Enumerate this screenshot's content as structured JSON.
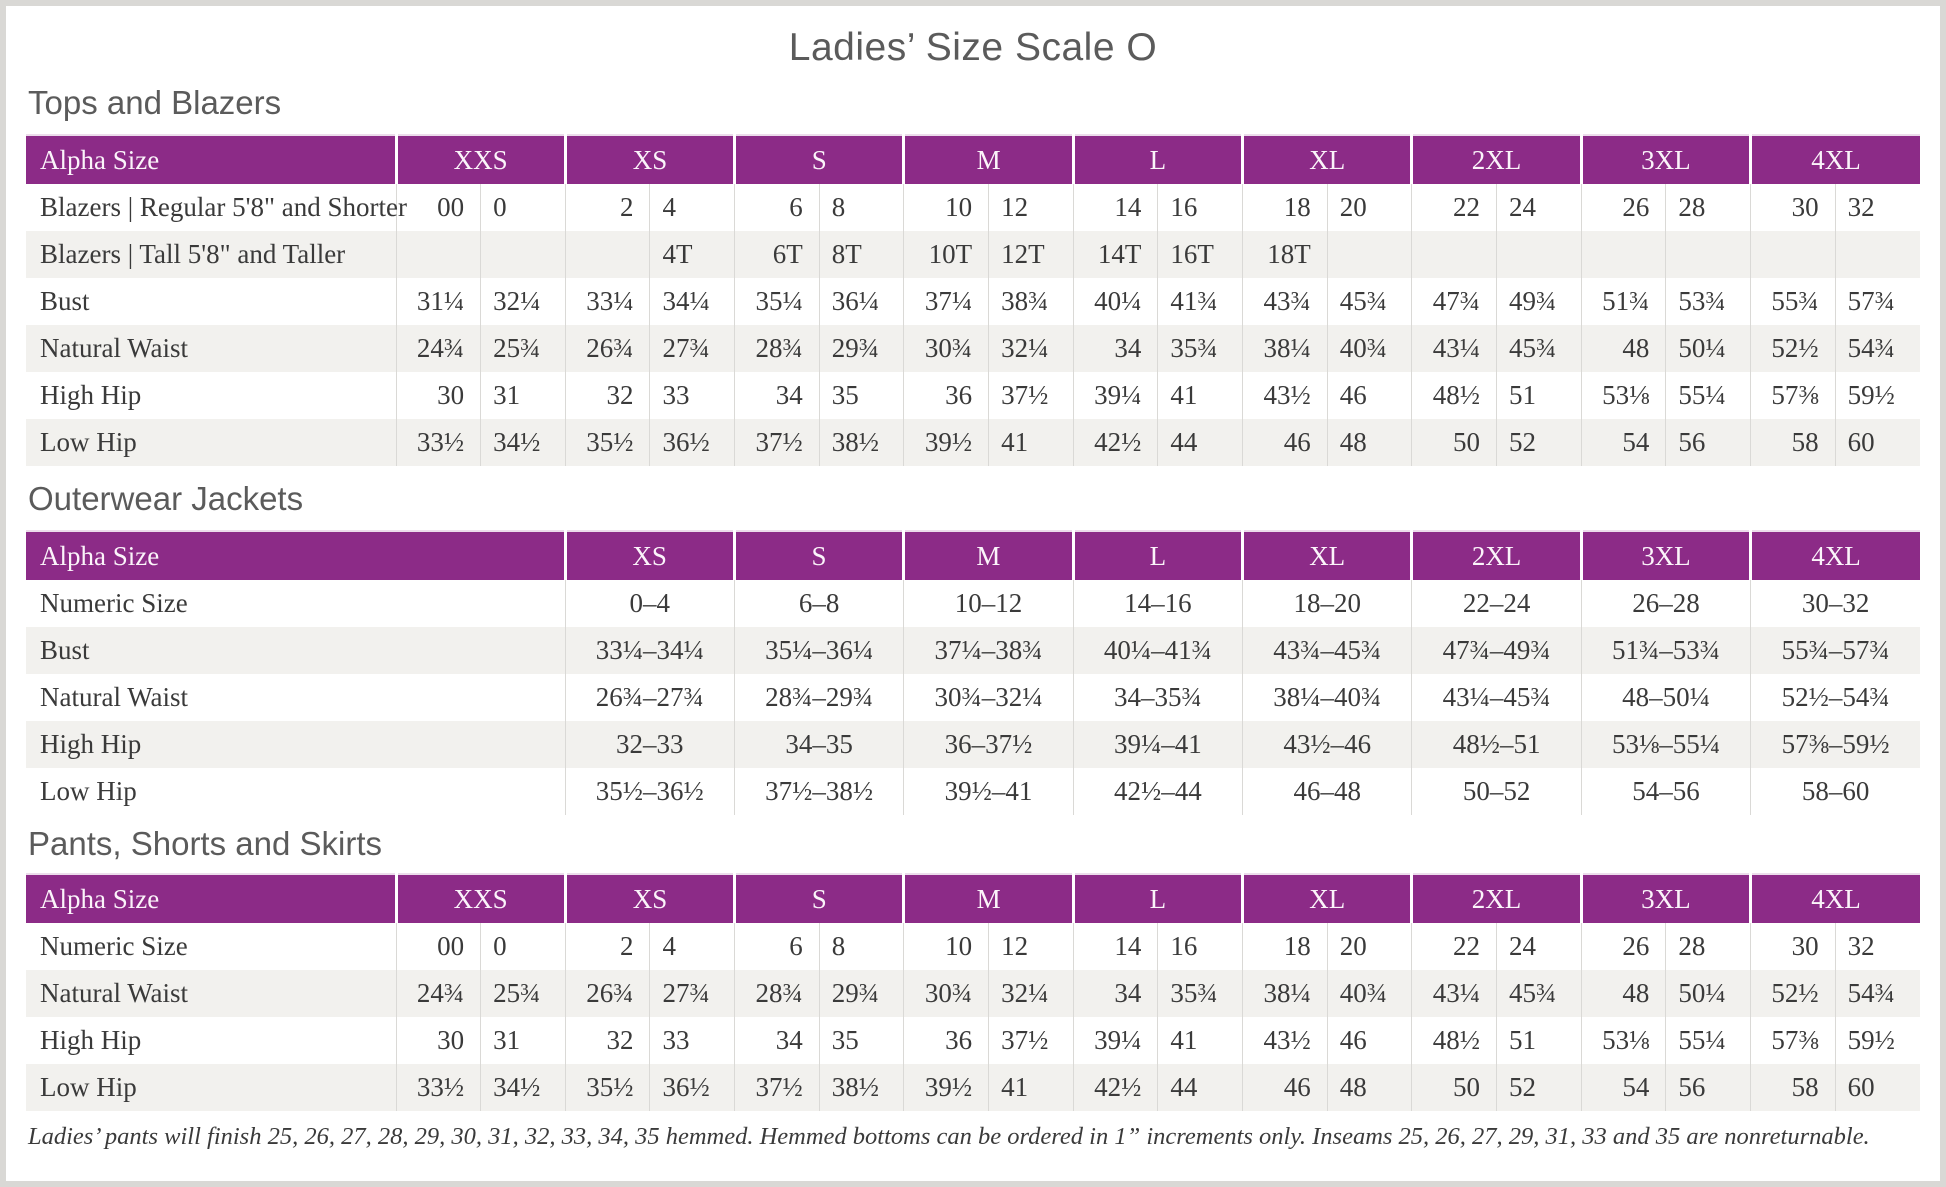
{
  "page": {
    "title": "Ladies’ Size Scale O",
    "footnote": "Ladies’ pants will finish 25, 26, 27, 28, 29, 30, 31, 32, 33, 34, 35 hemmed. Hemmed bottoms can be ordered in 1” increments only. Inseams 25, 26, 27, 29, 31, 33 and 35 are nonreturnable."
  },
  "colors": {
    "header_purple": "#8c2b87",
    "row_stripe": "#f2f1ee",
    "heading_gray": "#5b5b5b",
    "body_text": "#3a3a3a"
  },
  "tables": {
    "tops": {
      "section_title": "Tops and Blazers",
      "corner_label": "Alpha Size",
      "sizes": [
        "XXS",
        "XS",
        "S",
        "M",
        "L",
        "XL",
        "2XL",
        "3XL",
        "4XL"
      ],
      "rows": [
        {
          "label": "Blazers | Regular 5'8\" and Shorter",
          "values": [
            "00",
            "0",
            "2",
            "4",
            "6",
            "8",
            "10",
            "12",
            "14",
            "16",
            "18",
            "20",
            "22",
            "24",
            "26",
            "28",
            "30",
            "32"
          ]
        },
        {
          "label": "Blazers | Tall 5'8\" and Taller",
          "values": [
            "",
            "",
            "",
            "4T",
            "6T",
            "8T",
            "10T",
            "12T",
            "14T",
            "16T",
            "18T",
            "",
            "",
            "",
            "",
            "",
            "",
            ""
          ]
        },
        {
          "label": "Bust",
          "values": [
            "31¼",
            "32¼",
            "33¼",
            "34¼",
            "35¼",
            "36¼",
            "37¼",
            "38¾",
            "40¼",
            "41¾",
            "43¾",
            "45¾",
            "47¾",
            "49¾",
            "51¾",
            "53¾",
            "55¾",
            "57¾"
          ]
        },
        {
          "label": "Natural Waist",
          "values": [
            "24¾",
            "25¾",
            "26¾",
            "27¾",
            "28¾",
            "29¾",
            "30¾",
            "32¼",
            "34",
            "35¾",
            "38¼",
            "40¾",
            "43¼",
            "45¾",
            "48",
            "50¼",
            "52½",
            "54¾"
          ]
        },
        {
          "label": "High Hip",
          "values": [
            "30",
            "31",
            "32",
            "33",
            "34",
            "35",
            "36",
            "37½",
            "39¼",
            "41",
            "43½",
            "46",
            "48½",
            "51",
            "53⅛",
            "55¼",
            "57⅜",
            "59½"
          ]
        },
        {
          "label": "Low Hip",
          "values": [
            "33½",
            "34½",
            "35½",
            "36½",
            "37½",
            "38½",
            "39½",
            "41",
            "42½",
            "44",
            "46",
            "48",
            "50",
            "52",
            "54",
            "56",
            "58",
            "60"
          ]
        }
      ]
    },
    "outerwear": {
      "section_title": "Outerwear Jackets",
      "corner_label": "Alpha Size",
      "sizes": [
        "XS",
        "S",
        "M",
        "L",
        "XL",
        "2XL",
        "3XL",
        "4XL"
      ],
      "rows": [
        {
          "label": "Numeric Size",
          "values": [
            "0–4",
            "6–8",
            "10–12",
            "14–16",
            "18–20",
            "22–24",
            "26–28",
            "30–32"
          ]
        },
        {
          "label": "Bust",
          "values": [
            "33¼–34¼",
            "35¼–36¼",
            "37¼–38¾",
            "40¼–41¾",
            "43¾–45¾",
            "47¾–49¾",
            "51¾–53¾",
            "55¾–57¾"
          ]
        },
        {
          "label": "Natural Waist",
          "values": [
            "26¾–27¾",
            "28¾–29¾",
            "30¾–32¼",
            "34–35¾",
            "38¼–40¾",
            "43¼–45¾",
            "48–50¼",
            "52½–54¾"
          ]
        },
        {
          "label": "High Hip",
          "values": [
            "32–33",
            "34–35",
            "36–37½",
            "39¼–41",
            "43½–46",
            "48½–51",
            "53⅛–55¼",
            "57⅜–59½"
          ]
        },
        {
          "label": "Low Hip",
          "values": [
            "35½–36½",
            "37½–38½",
            "39½–41",
            "42½–44",
            "46–48",
            "50–52",
            "54–56",
            "58–60"
          ]
        }
      ]
    },
    "pants": {
      "section_title": "Pants, Shorts and Skirts",
      "corner_label": "Alpha Size",
      "sizes": [
        "XXS",
        "XS",
        "S",
        "M",
        "L",
        "XL",
        "2XL",
        "3XL",
        "4XL"
      ],
      "rows": [
        {
          "label": "Numeric Size",
          "values": [
            "00",
            "0",
            "2",
            "4",
            "6",
            "8",
            "10",
            "12",
            "14",
            "16",
            "18",
            "20",
            "22",
            "24",
            "26",
            "28",
            "30",
            "32"
          ]
        },
        {
          "label": "Natural Waist",
          "values": [
            "24¾",
            "25¾",
            "26¾",
            "27¾",
            "28¾",
            "29¾",
            "30¾",
            "32¼",
            "34",
            "35¾",
            "38¼",
            "40¾",
            "43¼",
            "45¾",
            "48",
            "50¼",
            "52½",
            "54¾"
          ]
        },
        {
          "label": "High Hip",
          "values": [
            "30",
            "31",
            "32",
            "33",
            "34",
            "35",
            "36",
            "37½",
            "39¼",
            "41",
            "43½",
            "46",
            "48½",
            "51",
            "53⅛",
            "55¼",
            "57⅜",
            "59½"
          ]
        },
        {
          "label": "Low Hip",
          "values": [
            "33½",
            "34½",
            "35½",
            "36½",
            "37½",
            "38½",
            "39½",
            "41",
            "42½",
            "44",
            "46",
            "48",
            "50",
            "52",
            "54",
            "56",
            "58",
            "60"
          ]
        }
      ]
    }
  }
}
